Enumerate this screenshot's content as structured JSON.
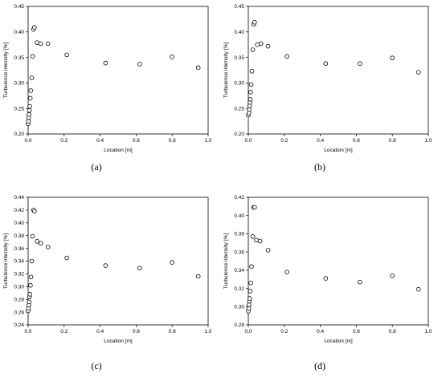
{
  "chart_data": [
    {
      "type": "scatter",
      "panel_label": "(a)",
      "xlabel": "Location [m]",
      "ylabel": "Turbulence intensity [%]",
      "xlim": [
        0.0,
        1.0
      ],
      "ylim": [
        0.2,
        0.45
      ],
      "x_ticks": [
        "0.0",
        "0.2",
        "0.4",
        "0.6",
        "0.8",
        "1.0"
      ],
      "y_ticks": [
        "0.20",
        "0.25",
        "0.30",
        "0.35",
        "0.40",
        "0.45"
      ],
      "grid": false,
      "marker": "open-circle",
      "points": [
        {
          "x": 0.0,
          "y": 0.22
        },
        {
          "x": 0.002,
          "y": 0.225
        },
        {
          "x": 0.003,
          "y": 0.232
        },
        {
          "x": 0.005,
          "y": 0.238
        },
        {
          "x": 0.007,
          "y": 0.246
        },
        {
          "x": 0.009,
          "y": 0.254
        },
        {
          "x": 0.012,
          "y": 0.27
        },
        {
          "x": 0.015,
          "y": 0.285
        },
        {
          "x": 0.02,
          "y": 0.31
        },
        {
          "x": 0.025,
          "y": 0.352
        },
        {
          "x": 0.03,
          "y": 0.405
        },
        {
          "x": 0.035,
          "y": 0.409
        },
        {
          "x": 0.05,
          "y": 0.379
        },
        {
          "x": 0.07,
          "y": 0.377
        },
        {
          "x": 0.11,
          "y": 0.377
        },
        {
          "x": 0.215,
          "y": 0.355
        },
        {
          "x": 0.43,
          "y": 0.339
        },
        {
          "x": 0.62,
          "y": 0.337
        },
        {
          "x": 0.8,
          "y": 0.351
        },
        {
          "x": 0.945,
          "y": 0.33
        }
      ]
    },
    {
      "type": "scatter",
      "panel_label": "(b)",
      "xlabel": "Location [m]",
      "ylabel": "Turbulence intensity [%]",
      "xlim": [
        0.0,
        1.0
      ],
      "ylim": [
        0.2,
        0.45
      ],
      "x_ticks": [
        "0.0",
        "0.2",
        "0.4",
        "0.6",
        "0.8",
        "1.0"
      ],
      "y_ticks": [
        "0.20",
        "0.25",
        "0.30",
        "0.35",
        "0.40",
        "0.45"
      ],
      "grid": false,
      "marker": "open-circle",
      "points": [
        {
          "x": 0.0,
          "y": 0.237
        },
        {
          "x": 0.003,
          "y": 0.241
        },
        {
          "x": 0.005,
          "y": 0.248
        },
        {
          "x": 0.007,
          "y": 0.255
        },
        {
          "x": 0.009,
          "y": 0.262
        },
        {
          "x": 0.011,
          "y": 0.268
        },
        {
          "x": 0.013,
          "y": 0.282
        },
        {
          "x": 0.016,
          "y": 0.297
        },
        {
          "x": 0.02,
          "y": 0.323
        },
        {
          "x": 0.025,
          "y": 0.365
        },
        {
          "x": 0.03,
          "y": 0.415
        },
        {
          "x": 0.035,
          "y": 0.419
        },
        {
          "x": 0.05,
          "y": 0.375
        },
        {
          "x": 0.07,
          "y": 0.377
        },
        {
          "x": 0.11,
          "y": 0.372
        },
        {
          "x": 0.215,
          "y": 0.352
        },
        {
          "x": 0.43,
          "y": 0.338
        },
        {
          "x": 0.62,
          "y": 0.338
        },
        {
          "x": 0.8,
          "y": 0.349
        },
        {
          "x": 0.945,
          "y": 0.321
        }
      ]
    },
    {
      "type": "scatter",
      "panel_label": "(c)",
      "xlabel": "Location [m]",
      "ylabel": "Turbulence intensity [%]",
      "xlim": [
        0.0,
        1.0
      ],
      "ylim": [
        0.24,
        0.44
      ],
      "x_ticks": [
        "0.0",
        "0.2",
        "0.4",
        "0.6",
        "0.8",
        "1.0"
      ],
      "y_ticks": [
        "0.24",
        "0.26",
        "0.28",
        "0.30",
        "0.32",
        "0.34",
        "0.36",
        "0.38",
        "0.40",
        "0.42",
        "0.44"
      ],
      "grid": false,
      "marker": "open-circle",
      "points": [
        {
          "x": 0.0,
          "y": 0.262
        },
        {
          "x": 0.002,
          "y": 0.266
        },
        {
          "x": 0.004,
          "y": 0.271
        },
        {
          "x": 0.006,
          "y": 0.276
        },
        {
          "x": 0.008,
          "y": 0.284
        },
        {
          "x": 0.01,
          "y": 0.288
        },
        {
          "x": 0.013,
          "y": 0.302
        },
        {
          "x": 0.016,
          "y": 0.315
        },
        {
          "x": 0.02,
          "y": 0.34
        },
        {
          "x": 0.025,
          "y": 0.379
        },
        {
          "x": 0.03,
          "y": 0.42
        },
        {
          "x": 0.035,
          "y": 0.418
        },
        {
          "x": 0.05,
          "y": 0.371
        },
        {
          "x": 0.07,
          "y": 0.368
        },
        {
          "x": 0.11,
          "y": 0.362
        },
        {
          "x": 0.215,
          "y": 0.345
        },
        {
          "x": 0.43,
          "y": 0.333
        },
        {
          "x": 0.62,
          "y": 0.329
        },
        {
          "x": 0.8,
          "y": 0.338
        },
        {
          "x": 0.945,
          "y": 0.316
        }
      ]
    },
    {
      "type": "scatter",
      "panel_label": "(d)",
      "xlabel": "Location [m]",
      "ylabel": "Turbulence intensity [%]",
      "xlim": [
        0.0,
        1.0
      ],
      "ylim": [
        0.28,
        0.42
      ],
      "x_ticks": [
        "0.0",
        "0.2",
        "0.4",
        "0.6",
        "0.8",
        "1.0"
      ],
      "y_ticks": [
        "0.28",
        "0.30",
        "0.32",
        "0.34",
        "0.36",
        "0.38",
        "0.40",
        "0.42"
      ],
      "grid": false,
      "marker": "open-circle",
      "points": [
        {
          "x": 0.0,
          "y": 0.295
        },
        {
          "x": 0.002,
          "y": 0.298
        },
        {
          "x": 0.004,
          "y": 0.302
        },
        {
          "x": 0.006,
          "y": 0.306
        },
        {
          "x": 0.008,
          "y": 0.309
        },
        {
          "x": 0.011,
          "y": 0.317
        },
        {
          "x": 0.014,
          "y": 0.326
        },
        {
          "x": 0.018,
          "y": 0.344
        },
        {
          "x": 0.025,
          "y": 0.377
        },
        {
          "x": 0.03,
          "y": 0.409
        },
        {
          "x": 0.035,
          "y": 0.409
        },
        {
          "x": 0.045,
          "y": 0.373
        },
        {
          "x": 0.065,
          "y": 0.372
        },
        {
          "x": 0.11,
          "y": 0.362
        },
        {
          "x": 0.215,
          "y": 0.338
        },
        {
          "x": 0.43,
          "y": 0.331
        },
        {
          "x": 0.62,
          "y": 0.327
        },
        {
          "x": 0.8,
          "y": 0.334
        },
        {
          "x": 0.945,
          "y": 0.319
        }
      ]
    }
  ]
}
